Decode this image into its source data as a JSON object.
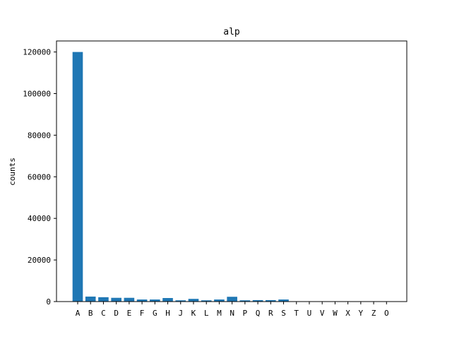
{
  "chart_data": {
    "type": "bar",
    "title": "alp",
    "xlabel": "",
    "ylabel": "counts",
    "categories": [
      "A",
      "B",
      "C",
      "D",
      "E",
      "F",
      "G",
      "H",
      "J",
      "K",
      "L",
      "M",
      "N",
      "P",
      "Q",
      "R",
      "S",
      "T",
      "U",
      "V",
      "W",
      "X",
      "Y",
      "Z",
      "O"
    ],
    "values": [
      120000,
      2400,
      2100,
      1800,
      1800,
      1000,
      1000,
      1700,
      600,
      1300,
      600,
      1000,
      2300,
      600,
      700,
      700,
      1000,
      0,
      0,
      0,
      0,
      0,
      0,
      0,
      0
    ],
    "ylim": [
      0,
      125300
    ],
    "yticks": [
      0,
      20000,
      40000,
      60000,
      80000,
      100000,
      120000
    ],
    "ytick_labels": [
      "0",
      "20000",
      "40000",
      "60000",
      "80000",
      "100000",
      "120000"
    ],
    "grid": false,
    "bar_color": "#1f77b4"
  }
}
